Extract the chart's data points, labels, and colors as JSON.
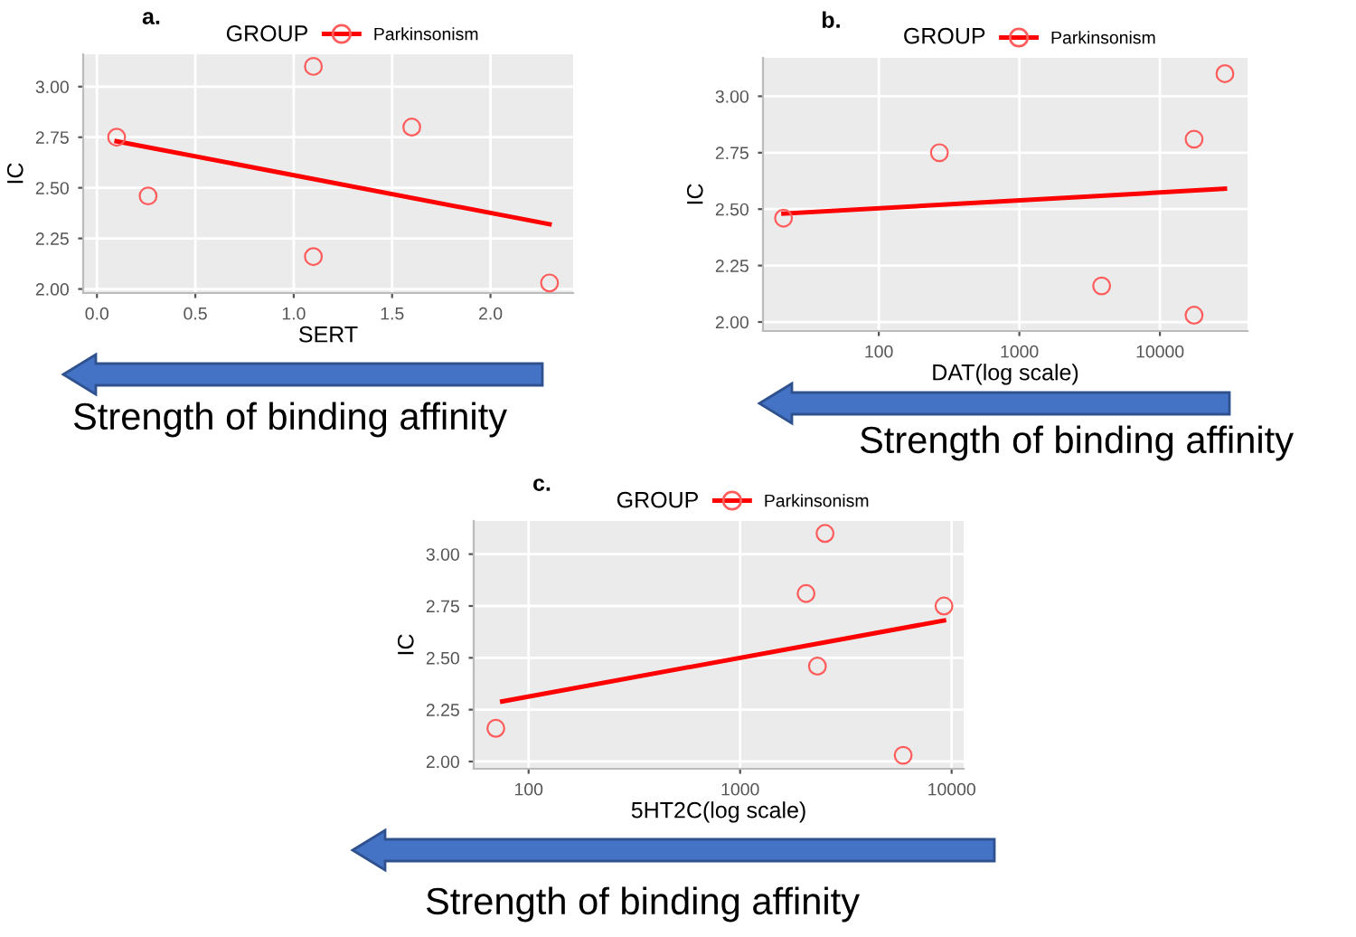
{
  "chart_data": [
    {
      "type": "scatter",
      "title": "a.",
      "xlabel": "SERT",
      "ylabel": "IC",
      "legend_title": "GROUP",
      "legend": "top",
      "grid": true,
      "xlim": [
        -0.07,
        2.42
      ],
      "ylim": [
        1.98,
        3.16
      ],
      "xticks": [
        {
          "value": 0,
          "label": "0.0"
        },
        {
          "value": 0.5,
          "label": "0.5"
        },
        {
          "value": 1,
          "label": "1.0"
        },
        {
          "value": 1.5,
          "label": "1.5"
        },
        {
          "value": 2,
          "label": "2.0"
        }
      ],
      "yticks": [
        {
          "value": 2,
          "label": "2.00"
        },
        {
          "value": 2.25,
          "label": "2.25"
        },
        {
          "value": 2.5,
          "label": "2.50"
        },
        {
          "value": 2.75,
          "label": "2.75"
        },
        {
          "value": 3,
          "label": "3.00"
        }
      ],
      "annotations": [
        "Strength of binding affinity"
      ],
      "series": [
        {
          "name": "Parkinsonism",
          "color": "#ff5c5c",
          "marker": "circle",
          "x": [
            0.1,
            0.26,
            1.1,
            1.6,
            1.1,
            2.3
          ],
          "values": [
            2.75,
            2.46,
            3.1,
            2.8,
            2.16,
            2.03
          ]
        },
        {
          "type": "line",
          "color": "#ff0000",
          "marker": "none",
          "x": [
            0.1,
            2.3
          ],
          "values": [
            2.73,
            2.32
          ]
        }
      ]
    },
    {
      "type": "scatter",
      "title": "b.",
      "xlabel": "DAT(log scale)",
      "ylabel": "IC",
      "legend_title": "GROUP",
      "legend": "top",
      "grid": true,
      "log": "x",
      "xlim": [
        15,
        42000
      ],
      "ylim": [
        1.96,
        3.17
      ],
      "xticks": [
        {
          "value": 100,
          "label": "100"
        },
        {
          "value": 1000,
          "label": "1000"
        },
        {
          "value": 10000,
          "label": "10000"
        }
      ],
      "yticks": [
        {
          "value": 2,
          "label": "2.00"
        },
        {
          "value": 2.25,
          "label": "2.25"
        },
        {
          "value": 2.5,
          "label": "2.50"
        },
        {
          "value": 2.75,
          "label": "2.75"
        },
        {
          "value": 3,
          "label": "3.00"
        }
      ],
      "annotations": [
        "Strength of binding affinity"
      ],
      "series": [
        {
          "name": "Parkinsonism",
          "color": "#ff5c5c",
          "marker": "circle",
          "x": [
            21,
            270,
            3850,
            17500,
            17500,
            29000
          ],
          "values": [
            2.46,
            2.75,
            2.16,
            2.81,
            2.03,
            3.1
          ]
        },
        {
          "type": "line",
          "color": "#ff0000",
          "marker": "none",
          "x": [
            21,
            29000
          ],
          "values": [
            2.48,
            2.59
          ]
        }
      ]
    },
    {
      "type": "scatter",
      "title": "c.",
      "xlabel": "5HT2C(log scale)",
      "ylabel": "IC",
      "legend_title": "GROUP",
      "legend": "top",
      "grid": true,
      "log": "x",
      "xlim": [
        55,
        11400
      ],
      "ylim": [
        1.965,
        3.16
      ],
      "xticks": [
        {
          "value": 100,
          "label": "100"
        },
        {
          "value": 1000,
          "label": "1000"
        },
        {
          "value": 10000,
          "label": "10000"
        }
      ],
      "yticks": [
        {
          "value": 2,
          "label": "2.00"
        },
        {
          "value": 2.25,
          "label": "2.25"
        },
        {
          "value": 2.5,
          "label": "2.50"
        },
        {
          "value": 2.75,
          "label": "2.75"
        },
        {
          "value": 3,
          "label": "3.00"
        }
      ],
      "annotations": [
        "Strength of binding affinity"
      ],
      "series": [
        {
          "name": "Parkinsonism",
          "color": "#ff5c5c",
          "marker": "circle",
          "x": [
            70,
            2050,
            2320,
            2520,
            5900,
            9200
          ],
          "values": [
            2.16,
            2.81,
            2.46,
            3.1,
            2.03,
            2.75
          ]
        },
        {
          "type": "line",
          "color": "#ff0000",
          "marker": "none",
          "x": [
            75,
            9200
          ],
          "values": [
            2.29,
            2.68
          ]
        }
      ]
    }
  ]
}
